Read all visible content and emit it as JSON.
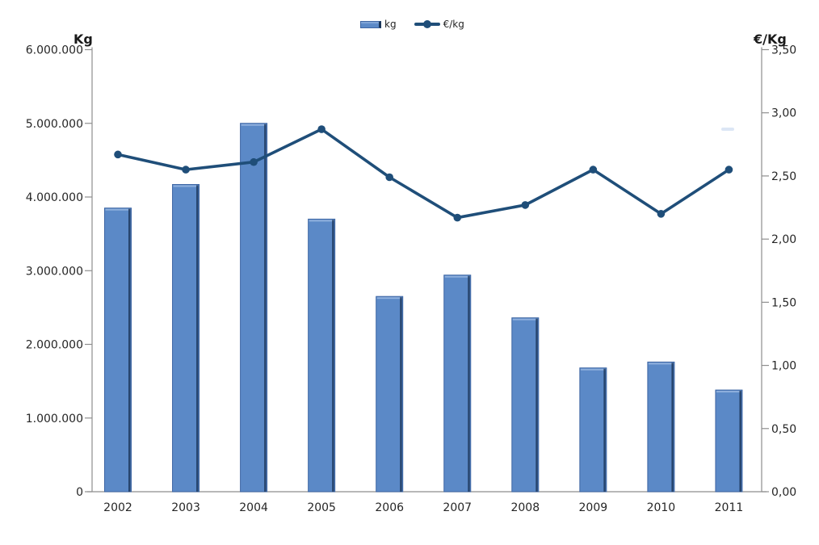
{
  "chart_data": {
    "type": "combo",
    "title": "",
    "categories": [
      "2002",
      "2003",
      "2004",
      "2005",
      "2006",
      "2007",
      "2008",
      "2009",
      "2010",
      "2011"
    ],
    "series": [
      {
        "name": "kg",
        "type": "bar",
        "axis": "left",
        "values": [
          3850000,
          4170000,
          5000000,
          3700000,
          2650000,
          2940000,
          2360000,
          1680000,
          1760000,
          1380000
        ]
      },
      {
        "name": "€/kg",
        "type": "line",
        "axis": "right",
        "values": [
          2.67,
          2.55,
          2.61,
          2.87,
          2.49,
          2.17,
          2.27,
          2.55,
          2.2,
          2.55
        ]
      }
    ],
    "left_axis": {
      "title": "Kg",
      "min": 0,
      "max": 6000000,
      "tick_values": [
        0,
        1000000,
        2000000,
        3000000,
        4000000,
        5000000,
        6000000
      ],
      "tick_labels": [
        "0",
        "1.000.000",
        "2.000.000",
        "3.000.000",
        "4.000.000",
        "5.000.000",
        "6.000.000"
      ]
    },
    "right_axis": {
      "title": "€/Kg",
      "min": 0,
      "max": 3.5,
      "tick_values": [
        0,
        0.5,
        1.0,
        1.5,
        2.0,
        2.5,
        3.0,
        3.5
      ],
      "tick_labels": [
        "0,00",
        "0,50",
        "1,00",
        "1,50",
        "2,00",
        "2,50",
        "3,00",
        "3,50"
      ]
    },
    "legend": {
      "position": "top",
      "items": [
        "kg",
        "€/kg"
      ]
    },
    "grid": false,
    "colors": {
      "bar_fill": "#5B89C7",
      "bar_stroke": "#3D65A3",
      "bar_top_highlight": "#8FB0DD",
      "bar_right_shadow": "#1A3558",
      "line": "#1F4E79",
      "axis": "#8E8E8E",
      "text": "#262626"
    }
  }
}
